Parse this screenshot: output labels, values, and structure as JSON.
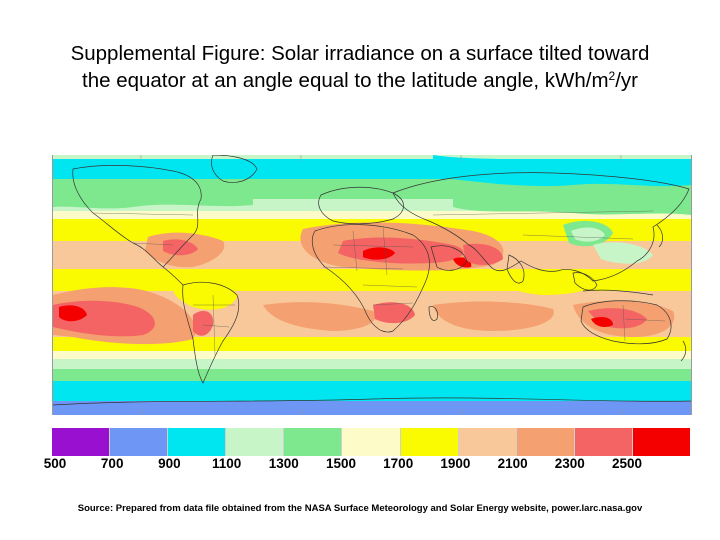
{
  "figure": {
    "title_line1": "Supplemental Figure: Solar irradiance on a surface tilted toward",
    "title_line2_pre": "the equator at an angle equal to the latitude angle, kWh/m",
    "title_line2_sup": "2",
    "title_line2_post": "/yr",
    "source": "Source: Prepared from data file obtained from the NASA Surface Meteorology and Solar Energy website, power.larc.nasa.gov"
  },
  "legend": {
    "tick_labels": [
      "500",
      "700",
      "900",
      "1100",
      "1300",
      "1500",
      "1700",
      "1900",
      "2100",
      "2300",
      "2500"
    ],
    "bins": [
      {
        "color": "#9a10d0"
      },
      {
        "color": "#6e96f5"
      },
      {
        "color": "#00e6f0"
      },
      {
        "color": "#c8f5c8"
      },
      {
        "color": "#7ee88e"
      },
      {
        "color": "#fdfcc8"
      },
      {
        "color": "#fafa00"
      },
      {
        "color": "#f8c89a"
      },
      {
        "color": "#f4a070"
      },
      {
        "color": "#f46464"
      },
      {
        "color": "#f50000"
      }
    ]
  }
}
